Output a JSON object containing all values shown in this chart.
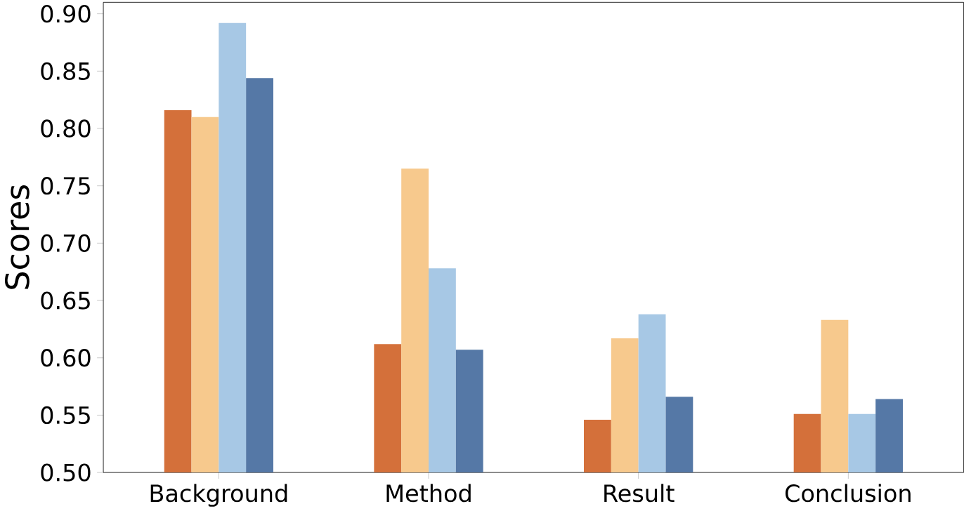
{
  "chart_data": {
    "type": "bar",
    "ylabel": "Scores",
    "categories": [
      "Background",
      "Method",
      "Result",
      "Conclusion"
    ],
    "series": [
      {
        "color": "#d4703a",
        "values": [
          0.816,
          0.612,
          0.546,
          0.551
        ]
      },
      {
        "color": "#f7c98d",
        "values": [
          0.81,
          0.765,
          0.617,
          0.633
        ]
      },
      {
        "color": "#a7c8e5",
        "values": [
          0.892,
          0.678,
          0.638,
          0.551
        ]
      },
      {
        "color": "#5578a6",
        "values": [
          0.844,
          0.607,
          0.566,
          0.564
        ]
      }
    ],
    "ylim": [
      0.5,
      0.91
    ],
    "yticks": [
      {
        "value": 0.5,
        "label": "0.50"
      },
      {
        "value": 0.55,
        "label": "0.55"
      },
      {
        "value": 0.6,
        "label": "0.60"
      },
      {
        "value": 0.65,
        "label": "0.65"
      },
      {
        "value": 0.7,
        "label": "0.70"
      },
      {
        "value": 0.75,
        "label": "0.75"
      },
      {
        "value": 0.8,
        "label": "0.80"
      },
      {
        "value": 0.85,
        "label": "0.85"
      },
      {
        "value": 0.9,
        "label": "0.90"
      }
    ],
    "grid": false
  }
}
